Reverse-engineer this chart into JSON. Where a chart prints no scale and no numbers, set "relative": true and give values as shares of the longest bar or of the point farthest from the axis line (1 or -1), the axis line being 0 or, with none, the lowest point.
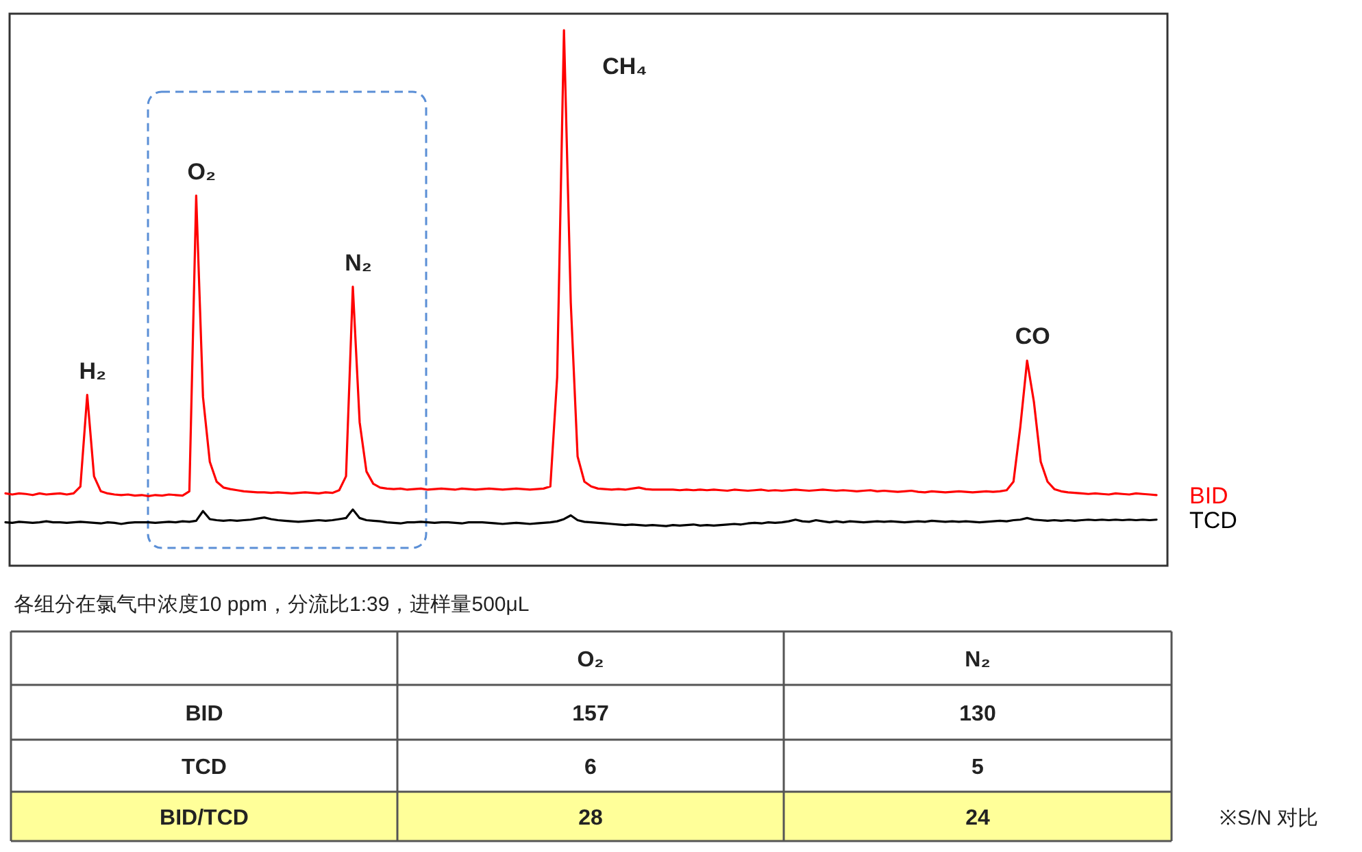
{
  "chart_data": [
    {
      "type": "line",
      "relative": true,
      "categories": [
        null,
        null,
        null,
        null,
        null,
        null,
        null,
        null,
        null,
        null,
        null,
        null,
        null,
        null,
        null,
        null,
        null,
        null,
        null,
        null,
        null,
        null,
        null,
        null,
        null,
        null,
        null,
        null,
        null,
        null,
        null,
        null,
        null,
        null,
        null,
        null,
        null,
        null,
        null,
        null,
        null,
        null,
        null,
        null,
        null,
        null,
        null,
        null,
        null,
        null,
        null,
        null,
        null,
        null,
        null,
        null,
        null,
        null,
        null,
        null,
        null,
        null,
        null,
        null,
        null,
        null,
        null,
        null,
        null,
        null,
        null,
        null,
        null,
        null,
        null,
        null,
        null,
        null,
        null,
        null,
        null,
        null,
        null,
        null,
        null,
        null,
        null,
        null,
        null,
        null,
        null,
        null,
        null,
        null,
        null,
        null,
        null,
        null,
        null,
        null,
        null,
        null,
        null,
        null,
        null,
        null,
        null,
        null,
        null,
        null,
        null,
        null,
        null,
        null,
        null,
        null,
        null,
        null,
        null,
        null,
        null,
        null,
        null,
        null,
        null,
        null,
        null,
        null,
        null,
        null,
        null,
        null,
        null,
        null,
        null,
        null,
        null,
        null,
        null,
        null,
        null,
        null,
        null,
        null,
        null,
        null,
        null,
        null,
        null,
        null,
        null,
        null,
        null,
        null,
        null,
        null,
        null,
        null,
        null,
        null,
        null,
        null,
        null,
        null,
        null,
        null,
        null,
        null,
        null,
        null
      ],
      "series": [
        {
          "name": "BID",
          "color": "#ff0000",
          "values": [
            0.135,
            0.133,
            0.135,
            0.134,
            0.132,
            0.135,
            0.133,
            0.134,
            0.135,
            0.133,
            0.135,
            0.148,
            0.319,
            0.167,
            0.139,
            0.135,
            0.133,
            0.132,
            0.133,
            0.131,
            0.132,
            0.13,
            0.132,
            0.131,
            0.133,
            0.132,
            0.131,
            0.139,
            0.691,
            0.315,
            0.194,
            0.157,
            0.146,
            0.143,
            0.141,
            0.139,
            0.138,
            0.137,
            0.137,
            0.136,
            0.137,
            0.136,
            0.135,
            0.136,
            0.137,
            0.136,
            0.135,
            0.137,
            0.136,
            0.141,
            0.167,
            0.521,
            0.268,
            0.176,
            0.153,
            0.146,
            0.144,
            0.143,
            0.144,
            0.142,
            0.143,
            0.144,
            0.142,
            0.143,
            0.144,
            0.143,
            0.142,
            0.144,
            0.143,
            0.142,
            0.143,
            0.144,
            0.143,
            0.142,
            0.143,
            0.144,
            0.143,
            0.142,
            0.143,
            0.144,
            0.148,
            0.352,
            1,
            0.491,
            0.204,
            0.157,
            0.148,
            0.144,
            0.143,
            0.142,
            0.143,
            0.142,
            0.144,
            0.146,
            0.143,
            0.142,
            0.142,
            0.142,
            0.142,
            0.141,
            0.142,
            0.141,
            0.142,
            0.141,
            0.142,
            0.141,
            0.14,
            0.142,
            0.141,
            0.14,
            0.141,
            0.142,
            0.14,
            0.141,
            0.14,
            0.141,
            0.142,
            0.141,
            0.14,
            0.141,
            0.142,
            0.141,
            0.14,
            0.141,
            0.14,
            0.139,
            0.14,
            0.141,
            0.139,
            0.14,
            0.139,
            0.138,
            0.139,
            0.14,
            0.138,
            0.137,
            0.139,
            0.138,
            0.137,
            0.138,
            0.139,
            0.138,
            0.137,
            0.138,
            0.139,
            0.138,
            0.139,
            0.141,
            0.157,
            0.259,
            0.383,
            0.306,
            0.194,
            0.157,
            0.143,
            0.139,
            0.137,
            0.136,
            0.135,
            0.134,
            0.135,
            0.134,
            0.133,
            0.135,
            0.134,
            0.133,
            0.135,
            0.134,
            0.133,
            0.132
          ]
        },
        {
          "name": "TCD",
          "color": "#000000",
          "values": [
            0.081,
            0.08,
            0.082,
            0.081,
            0.08,
            0.081,
            0.083,
            0.081,
            0.081,
            0.08,
            0.081,
            0.082,
            0.081,
            0.08,
            0.079,
            0.081,
            0.08,
            0.078,
            0.08,
            0.081,
            0.081,
            0.081,
            0.08,
            0.081,
            0.082,
            0.081,
            0.083,
            0.082,
            0.084,
            0.102,
            0.087,
            0.085,
            0.084,
            0.085,
            0.084,
            0.085,
            0.086,
            0.088,
            0.09,
            0.087,
            0.085,
            0.084,
            0.083,
            0.082,
            0.083,
            0.084,
            0.085,
            0.084,
            0.085,
            0.087,
            0.089,
            0.105,
            0.089,
            0.085,
            0.084,
            0.083,
            0.081,
            0.08,
            0.079,
            0.081,
            0.081,
            0.082,
            0.081,
            0.08,
            0.081,
            0.081,
            0.08,
            0.079,
            0.081,
            0.081,
            0.081,
            0.08,
            0.079,
            0.078,
            0.079,
            0.08,
            0.079,
            0.078,
            0.079,
            0.08,
            0.081,
            0.083,
            0.087,
            0.094,
            0.085,
            0.082,
            0.081,
            0.08,
            0.079,
            0.078,
            0.077,
            0.076,
            0.077,
            0.076,
            0.075,
            0.076,
            0.075,
            0.074,
            0.076,
            0.075,
            0.076,
            0.077,
            0.075,
            0.076,
            0.075,
            0.076,
            0.077,
            0.078,
            0.077,
            0.079,
            0.08,
            0.079,
            0.081,
            0.08,
            0.081,
            0.083,
            0.086,
            0.083,
            0.082,
            0.085,
            0.083,
            0.081,
            0.083,
            0.081,
            0.083,
            0.082,
            0.081,
            0.082,
            0.083,
            0.082,
            0.083,
            0.082,
            0.081,
            0.082,
            0.083,
            0.082,
            0.084,
            0.083,
            0.082,
            0.083,
            0.082,
            0.083,
            0.082,
            0.081,
            0.082,
            0.083,
            0.084,
            0.083,
            0.085,
            0.086,
            0.089,
            0.086,
            0.085,
            0.084,
            0.085,
            0.084,
            0.085,
            0.084,
            0.085,
            0.086,
            0.085,
            0.086,
            0.085,
            0.086,
            0.085,
            0.086,
            0.085,
            0.086,
            0.085,
            0.086
          ]
        }
      ],
      "annotations": [
        "H₂",
        "O₂",
        "N₂",
        "CH₄",
        "CO"
      ]
    },
    {
      "type": "heatmap",
      "data_labels": true,
      "title": "各组分在氯气中浓度10 ppm，分流比1:39，进样量500μL",
      "categories": [
        "O₂",
        "N₂"
      ],
      "y_categories": [
        "BID",
        "TCD",
        "BID/TCD"
      ],
      "cells": [
        [
          157,
          130
        ],
        [
          6,
          5
        ],
        [
          28,
          24
        ]
      ],
      "colors": [
        "#ffffff",
        "#ffffff",
        "#ffff99"
      ],
      "annotations": [
        "※S/N 对比"
      ]
    }
  ]
}
